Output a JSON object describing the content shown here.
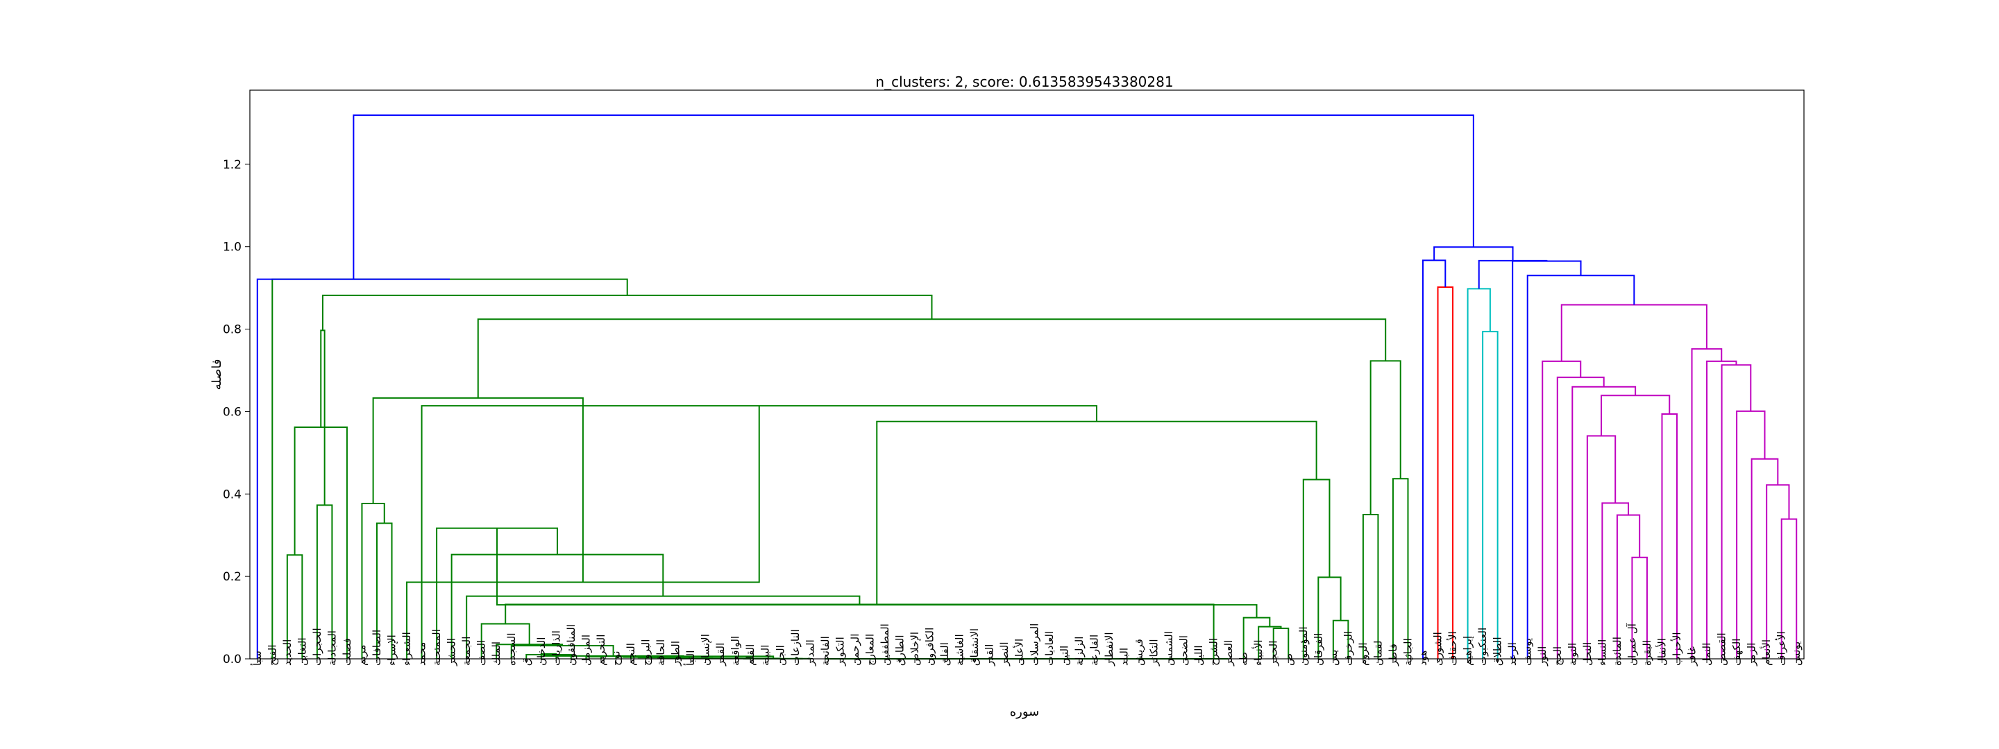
{
  "chart_data": {
    "type": "dendrogram",
    "title": "n_clusters: 2, score: 0.6135839543380281",
    "xlabel": "سوره",
    "ylabel": "فاصله",
    "ylim": [
      0,
      1.3798
    ],
    "yticks": [
      0.0,
      0.2,
      0.4,
      0.6,
      0.8,
      1.0,
      1.2
    ],
    "grid": false,
    "colors": {
      "link": "#0000ff",
      "c1": "#008000",
      "c2": "#ff0000",
      "c3": "#00bfbf",
      "c4": "#bf00bf"
    },
    "leaves": [
      "سبأ",
      "الفتح",
      "الحديد",
      "التغابن",
      "الحجرات",
      "المجادلة",
      "فصلت",
      "مريم",
      "الصافات",
      "الإسراء",
      "الشعراء",
      "محمد",
      "الممتحنة",
      "الحشر",
      "الجمعة",
      "الصف",
      "الملك",
      "السجده",
      "ق",
      "الدخان",
      "الذاريات",
      "المنافقون",
      "المزمل",
      "التحريم",
      "نوح",
      "النجم",
      "البروج",
      "الحاقة",
      "الطور",
      "النبأ",
      "الإنسان",
      "القمر",
      "الواقعة",
      "القلم",
      "البينة",
      "الجن",
      "النازعات",
      "المدثر",
      "الفاتحة",
      "التكوير",
      "الرحمن",
      "المعارج",
      "المطففين",
      "الطارق",
      "الإخلاص",
      "الكافرون",
      "الفلق",
      "الغاشية",
      "الانشقاق",
      "القدر",
      "النصر",
      "الأعلى",
      "المرسلات",
      "العاديات",
      "التين",
      "الزلزلة",
      "القارعة",
      "الانفطار",
      "البلد",
      "قريش",
      "التكاثر",
      "الشمس",
      "الضحى",
      "الليل",
      "الشرح",
      "العصر",
      "طه",
      "الأنبياء",
      "الحجر",
      "ص",
      "المؤمنون",
      "الفرقان",
      "يس",
      "الزخرف",
      "الروم",
      "لقمان",
      "فاطر",
      "الجاثية",
      "هود",
      "الشورى",
      "الأحقاف",
      "إبراهيم",
      "العنكبوت",
      "الطلاق",
      "الرعد",
      "يوسف",
      "النور",
      "الحج",
      "التوبة",
      "النحل",
      "النساء",
      "المائدة",
      "آل عمران",
      "البقرة",
      "الأنفال",
      "الأحزاب",
      "غافر",
      "النمل",
      "القصص",
      "الكهف",
      "الزمر",
      "الأنعام",
      "الأعراف",
      "يونس"
    ],
    "merges": [
      {
        "l": "L19",
        "r": "L20",
        "h": 0.012,
        "c": "c1"
      },
      {
        "l": "N0",
        "r": "L21",
        "h": 0.01,
        "c": "c1"
      },
      {
        "l": "L18",
        "r": "N1",
        "h": 0.01,
        "c": "c1"
      },
      {
        "l": "L22",
        "r": "L23",
        "h": 0.005,
        "c": "c1"
      },
      {
        "l": "L24",
        "r": "L25",
        "h": 0.005,
        "c": "c1"
      },
      {
        "l": "L26",
        "r": "L27",
        "h": 0.004,
        "c": "c1"
      },
      {
        "l": "N4",
        "r": "N5",
        "h": 0.004,
        "c": "c1"
      },
      {
        "l": "L28",
        "r": "L29",
        "h": 0.003,
        "c": "c1"
      },
      {
        "l": "N6",
        "r": "N7",
        "h": 0.003,
        "c": "c1"
      },
      {
        "l": "L30",
        "r": "L31",
        "h": 0.002,
        "c": "c1"
      },
      {
        "l": "N8",
        "r": "N9",
        "h": 0.002,
        "c": "c1"
      },
      {
        "l": "L32",
        "r": "L33",
        "h": 0.0015,
        "c": "c1"
      },
      {
        "l": "N10",
        "r": "N11",
        "h": 0.0015,
        "c": "c1"
      },
      {
        "l": "L34",
        "r": "L35",
        "h": 0.001,
        "c": "c1"
      },
      {
        "l": "N12",
        "r": "N13",
        "h": 0.001,
        "c": "c1"
      },
      {
        "l": "L36",
        "r": "L37",
        "h": 0.0005,
        "c": "c1"
      },
      {
        "l": "N14",
        "r": "N15",
        "h": 0.0005,
        "c": "c1"
      },
      {
        "l": "N3",
        "r": "N16",
        "h": 0.006,
        "c": "c1"
      },
      {
        "l": "N2",
        "r": "N17",
        "h": 0.007,
        "c": "c1"
      },
      {
        "l": "L17",
        "r": "N18",
        "h": 0.032,
        "c": "c1"
      },
      {
        "l": "L16",
        "r": "N19",
        "h": 0.035,
        "c": "c1"
      },
      {
        "l": "L15",
        "r": "N20",
        "h": 0.085,
        "c": "c1"
      },
      {
        "l": "L38",
        "r": "L39",
        "h": 0,
        "c": "c1"
      },
      {
        "l": "N22",
        "r": "L40",
        "h": 0,
        "c": "c1"
      },
      {
        "l": "N23",
        "r": "L41",
        "h": 0,
        "c": "c1"
      },
      {
        "l": "N24",
        "r": "L42",
        "h": 0,
        "c": "c1"
      },
      {
        "l": "N25",
        "r": "L43",
        "h": 0,
        "c": "c1"
      },
      {
        "l": "N26",
        "r": "L44",
        "h": 0,
        "c": "c1"
      },
      {
        "l": "N27",
        "r": "L45",
        "h": 0,
        "c": "c1"
      },
      {
        "l": "N28",
        "r": "L46",
        "h": 0,
        "c": "c1"
      },
      {
        "l": "N29",
        "r": "L47",
        "h": 0,
        "c": "c1"
      },
      {
        "l": "N30",
        "r": "L48",
        "h": 0,
        "c": "c1"
      },
      {
        "l": "N31",
        "r": "L49",
        "h": 0,
        "c": "c1"
      },
      {
        "l": "N32",
        "r": "L50",
        "h": 0,
        "c": "c1"
      },
      {
        "l": "N33",
        "r": "L51",
        "h": 0,
        "c": "c1"
      },
      {
        "l": "N34",
        "r": "L52",
        "h": 0,
        "c": "c1"
      },
      {
        "l": "N35",
        "r": "L53",
        "h": 0,
        "c": "c1"
      },
      {
        "l": "N36",
        "r": "L54",
        "h": 0,
        "c": "c1"
      },
      {
        "l": "N37",
        "r": "L55",
        "h": 0,
        "c": "c1"
      },
      {
        "l": "N38",
        "r": "L56",
        "h": 0,
        "c": "c1"
      },
      {
        "l": "N39",
        "r": "L57",
        "h": 0,
        "c": "c1"
      },
      {
        "l": "N40",
        "r": "L58",
        "h": 0,
        "c": "c1"
      },
      {
        "l": "N41",
        "r": "L59",
        "h": 0,
        "c": "c1"
      },
      {
        "l": "N42",
        "r": "L60",
        "h": 0,
        "c": "c1"
      },
      {
        "l": "N43",
        "r": "L61",
        "h": 0,
        "c": "c1"
      },
      {
        "l": "N44",
        "r": "L62",
        "h": 0,
        "c": "c1"
      },
      {
        "l": "N45",
        "r": "L63",
        "h": 0,
        "c": "c1"
      },
      {
        "l": "N46",
        "r": "L64",
        "h": 0,
        "c": "c1"
      },
      {
        "l": "N47",
        "r": "L65",
        "h": 0,
        "c": "c1"
      },
      {
        "l": "N21",
        "r": "N48",
        "h": 0.132,
        "c": "c1"
      },
      {
        "l": "L14",
        "r": "N49",
        "h": 0.152,
        "c": "c1"
      },
      {
        "l": "L13",
        "r": "N50",
        "h": 0.253,
        "c": "c1"
      },
      {
        "l": "L12",
        "r": "N51",
        "h": 0.317,
        "c": "c1"
      },
      {
        "l": "L68",
        "r": "L69",
        "h": 0.074,
        "c": "c1"
      },
      {
        "l": "L67",
        "r": "N53",
        "h": 0.078,
        "c": "c1"
      },
      {
        "l": "L66",
        "r": "N54",
        "h": 0.1,
        "c": "c1"
      },
      {
        "l": "N52",
        "r": "N55",
        "h": 0.131,
        "c": "c1"
      },
      {
        "l": "L72",
        "r": "L73",
        "h": 0.093,
        "c": "c1"
      },
      {
        "l": "L71",
        "r": "N57",
        "h": 0.198,
        "c": "c1"
      },
      {
        "l": "L70",
        "r": "N58",
        "h": 0.435,
        "c": "c1"
      },
      {
        "l": "N56",
        "r": "N59",
        "h": 0.576,
        "c": "c1"
      },
      {
        "l": "L11",
        "r": "N60",
        "h": 0.614,
        "c": "c1"
      },
      {
        "l": "L10",
        "r": "N61",
        "h": 0.186,
        "c": "c1"
      },
      {
        "l": "L8",
        "r": "L9",
        "h": 0.329,
        "c": "c1"
      },
      {
        "l": "L7",
        "r": "N63",
        "h": 0.377,
        "c": "c1"
      },
      {
        "l": "N64",
        "r": "N62",
        "h": 0.633,
        "c": "c1"
      },
      {
        "l": "L74",
        "r": "L75",
        "h": 0.35,
        "c": "c1"
      },
      {
        "l": "L76",
        "r": "L77",
        "h": 0.437,
        "c": "c1"
      },
      {
        "l": "N66",
        "r": "N67",
        "h": 0.723,
        "c": "c1"
      },
      {
        "l": "N65",
        "r": "N68",
        "h": 0.824,
        "c": "c1"
      },
      {
        "l": "L2",
        "r": "L3",
        "h": 0.252,
        "c": "c1"
      },
      {
        "l": "L4",
        "r": "L5",
        "h": 0.373,
        "c": "c1"
      },
      {
        "l": "N70",
        "r": "L6",
        "h": 0.562,
        "c": "c1"
      },
      {
        "l": "N71",
        "r": "N72",
        "h": 0.797,
        "c": "c1"
      },
      {
        "l": "N73",
        "r": "N69",
        "h": 0.882,
        "c": "c1"
      },
      {
        "l": "L1",
        "r": "N74",
        "h": 0.921,
        "c": "c1"
      },
      {
        "l": "L0",
        "r": "N75",
        "h": 0.921,
        "c": "link"
      },
      {
        "l": "L79",
        "r": "L80",
        "h": 0.902,
        "c": "c2"
      },
      {
        "l": "L78",
        "r": "N77",
        "h": 0.967,
        "c": "link"
      },
      {
        "l": "L82",
        "r": "L83",
        "h": 0.794,
        "c": "c3"
      },
      {
        "l": "L81",
        "r": "N79",
        "h": 0.898,
        "c": "c3"
      },
      {
        "l": "L92",
        "r": "L93",
        "h": 0.246,
        "c": "c4"
      },
      {
        "l": "L91",
        "r": "N81",
        "h": 0.349,
        "c": "c4"
      },
      {
        "l": "L90",
        "r": "N82",
        "h": 0.378,
        "c": "c4"
      },
      {
        "l": "L89",
        "r": "N83",
        "h": 0.541,
        "c": "c4"
      },
      {
        "l": "L94",
        "r": "L95",
        "h": 0.594,
        "c": "c4"
      },
      {
        "l": "N84",
        "r": "N85",
        "h": 0.639,
        "c": "c4"
      },
      {
        "l": "L88",
        "r": "N86",
        "h": 0.66,
        "c": "c4"
      },
      {
        "l": "L87",
        "r": "N87",
        "h": 0.683,
        "c": "c4"
      },
      {
        "l": "L86",
        "r": "N88",
        "h": 0.722,
        "c": "c4"
      },
      {
        "l": "L102",
        "r": "L103",
        "h": 0.339,
        "c": "c4"
      },
      {
        "l": "L101",
        "r": "N90",
        "h": 0.422,
        "c": "c4"
      },
      {
        "l": "L100",
        "r": "N91",
        "h": 0.485,
        "c": "c4"
      },
      {
        "l": "L99",
        "r": "N92",
        "h": 0.601,
        "c": "c4"
      },
      {
        "l": "L98",
        "r": "N93",
        "h": 0.713,
        "c": "c4"
      },
      {
        "l": "L97",
        "r": "N94",
        "h": 0.722,
        "c": "c4"
      },
      {
        "l": "L96",
        "r": "N95",
        "h": 0.752,
        "c": "c4"
      },
      {
        "l": "N89",
        "r": "N96",
        "h": 0.859,
        "c": "c4"
      },
      {
        "l": "L85",
        "r": "N97",
        "h": 0.93,
        "c": "link"
      },
      {
        "l": "L84",
        "r": "N98",
        "h": 0.965,
        "c": "link"
      },
      {
        "l": "N80",
        "r": "N99",
        "h": 0.966,
        "c": "link"
      },
      {
        "l": "N78",
        "r": "N100",
        "h": 0.999,
        "c": "link"
      },
      {
        "l": "N76",
        "r": "N101",
        "h": 1.319,
        "c": "link"
      }
    ]
  }
}
